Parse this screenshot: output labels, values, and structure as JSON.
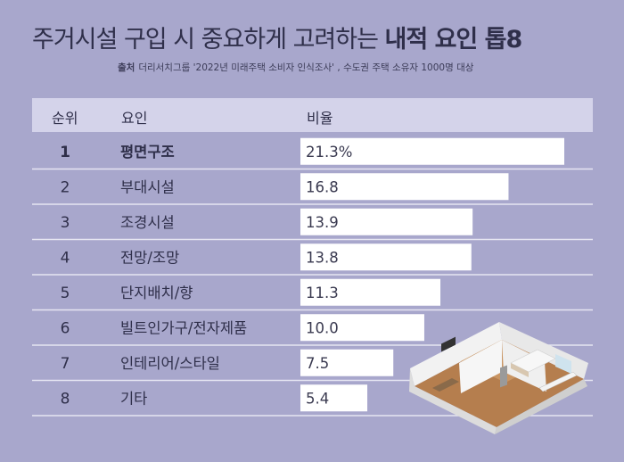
{
  "title": {
    "normal": "주거시설 구입 시 중요하게 고려하는 ",
    "bold": "내적 요인 톱8"
  },
  "source": {
    "label": "출처",
    "text": "더리서치그룹 '2022년 미래주택 소비자 인식조사' , 수도권 주택 소유자 1000명 대상"
  },
  "table_headers": {
    "rank": "순위",
    "factor": "요인",
    "ratio": "비율"
  },
  "chart_data": {
    "type": "bar",
    "orientation": "horizontal",
    "ranks": [
      "1",
      "2",
      "3",
      "4",
      "5",
      "6",
      "7",
      "8"
    ],
    "categories": [
      "평면구조",
      "부대시설",
      "조경시설",
      "전망/조망",
      "단지배치/향",
      "빌트인가구/전자제품",
      "인테리어/스타일",
      "기타"
    ],
    "values": [
      21.3,
      16.8,
      13.9,
      13.8,
      11.3,
      10.0,
      7.5,
      5.4
    ],
    "value_labels": [
      "21.3%",
      "16.8",
      "13.9",
      "13.8",
      "11.3",
      "10.0",
      "7.5",
      "5.4"
    ],
    "xlim": [
      0,
      21.3
    ],
    "colors": {
      "bar": "#ffffff",
      "background": "#a8a7cc",
      "header": "#d4d3ea",
      "divider": "#e6e6f2"
    }
  }
}
